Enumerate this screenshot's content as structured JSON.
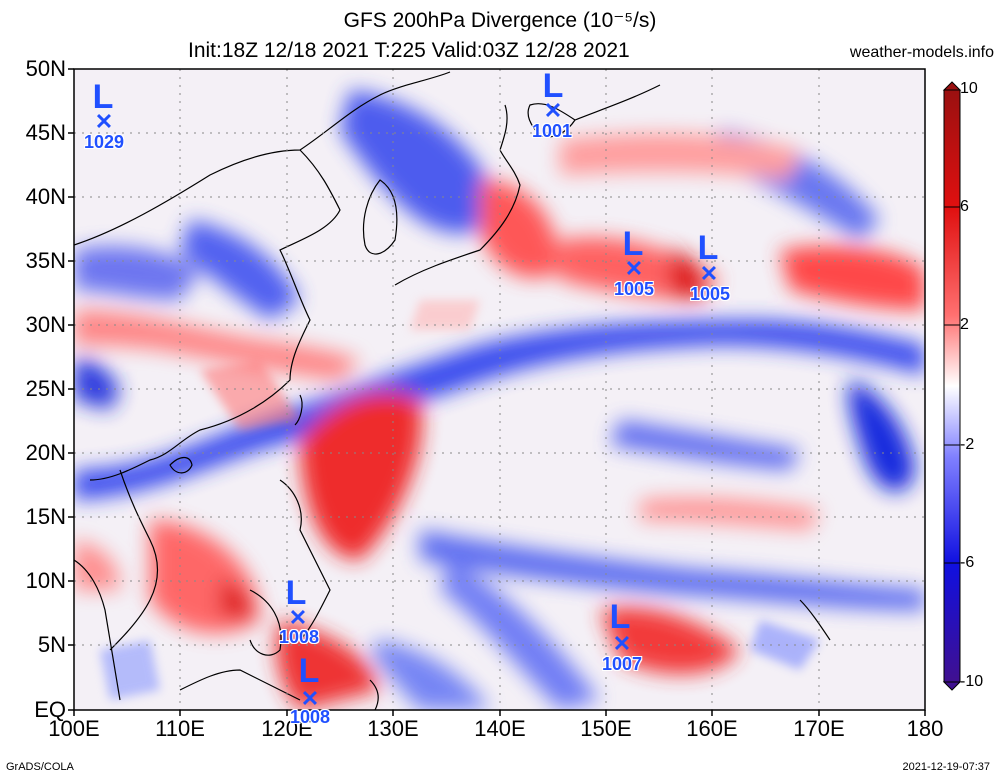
{
  "header": {
    "title_line1": "GFS 200hPa Divergence (10⁻⁵/s)",
    "title_line2": "Init:18Z 12/18 2021 T:225 Valid:03Z 12/28 2021",
    "site": "weather-models.info"
  },
  "lat_labels": [
    "50N",
    "45N",
    "40N",
    "35N",
    "30N",
    "25N",
    "20N",
    "15N",
    "10N",
    "5N",
    "EQ"
  ],
  "lon_labels": [
    "100E",
    "110E",
    "120E",
    "130E",
    "140E",
    "150E",
    "160E",
    "170E",
    "180"
  ],
  "colorbar": {
    "labels": [
      "10",
      "6",
      "2",
      "-2",
      "-6",
      "-10"
    ],
    "colors": [
      "#8b1010",
      "#d01010",
      "#ff2020",
      "#ff9090",
      "#ffe0e0",
      "#ffffff",
      "#e0e0ff",
      "#9090ff",
      "#2020ff",
      "#1010c0",
      "#401090"
    ]
  },
  "lows": [
    {
      "pressure": "1029",
      "lon": 103,
      "lat": 46
    },
    {
      "pressure": "1001",
      "lon": 145,
      "lat": 47
    },
    {
      "pressure": "1005",
      "lon": 153,
      "lat": 34.5
    },
    {
      "pressure": "1005",
      "lon": 160,
      "lat": 34
    },
    {
      "pressure": "1008",
      "lon": 121,
      "lat": 7
    },
    {
      "pressure": "1008",
      "lon": 122,
      "lat": 0.5
    },
    {
      "pressure": "1007",
      "lon": 151,
      "lat": 5
    }
  ],
  "footer": {
    "left": "GrADS/COLA",
    "right": "2021-12-19-07:37"
  }
}
